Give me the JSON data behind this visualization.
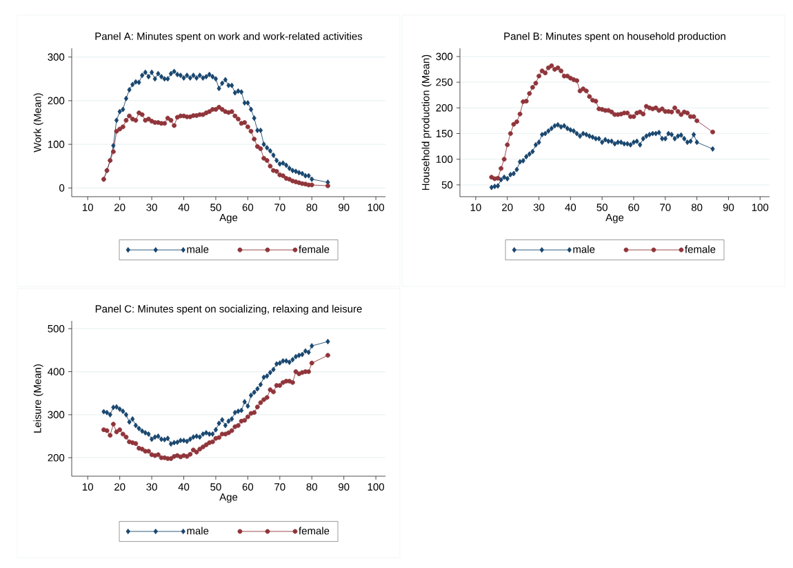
{
  "chart_data": [
    {
      "type": "line",
      "title": "Panel A: Minutes spent on work and work-related activities",
      "xlabel": "Age",
      "ylabel": "Work (Mean)",
      "x": [
        15,
        16,
        17,
        18,
        19,
        20,
        21,
        22,
        23,
        24,
        25,
        26,
        27,
        28,
        29,
        30,
        31,
        32,
        33,
        34,
        35,
        36,
        37,
        38,
        39,
        40,
        41,
        42,
        43,
        44,
        45,
        46,
        47,
        48,
        49,
        50,
        51,
        52,
        53,
        54,
        55,
        56,
        57,
        58,
        59,
        60,
        61,
        62,
        63,
        64,
        65,
        66,
        67,
        68,
        69,
        70,
        71,
        72,
        73,
        74,
        75,
        76,
        77,
        78,
        79,
        80,
        85
      ],
      "series": [
        {
          "name": "male",
          "color": "#1a476f",
          "marker": "diamond",
          "values": [
            20,
            40,
            63,
            97,
            155,
            175,
            180,
            205,
            225,
            237,
            243,
            242,
            258,
            265,
            255,
            265,
            250,
            262,
            255,
            250,
            250,
            262,
            267,
            260,
            258,
            252,
            258,
            252,
            258,
            252,
            258,
            252,
            255,
            260,
            255,
            250,
            228,
            240,
            248,
            235,
            235,
            218,
            222,
            220,
            195,
            195,
            180,
            160,
            132,
            132,
            100,
            92,
            85,
            75,
            63,
            55,
            57,
            52,
            45,
            40,
            38,
            35,
            33,
            28,
            28,
            20,
            13
          ]
        },
        {
          "name": "female",
          "color": "#90353b",
          "marker": "circle",
          "values": [
            20,
            40,
            63,
            83,
            130,
            135,
            140,
            155,
            165,
            158,
            155,
            172,
            168,
            155,
            158,
            153,
            150,
            150,
            148,
            148,
            160,
            155,
            143,
            162,
            165,
            165,
            163,
            163,
            166,
            166,
            168,
            168,
            172,
            175,
            180,
            180,
            185,
            180,
            175,
            173,
            175,
            165,
            158,
            148,
            150,
            140,
            130,
            112,
            95,
            90,
            68,
            63,
            50,
            40,
            38,
            30,
            28,
            22,
            20,
            16,
            14,
            12,
            10,
            9,
            7,
            7,
            5
          ]
        }
      ],
      "xlim": [
        5,
        103
      ],
      "ylim": [
        -20,
        320
      ],
      "xticks": [
        10,
        20,
        30,
        40,
        50,
        60,
        70,
        80,
        90,
        100
      ],
      "yticks": [
        0,
        100,
        200,
        300
      ],
      "grid": "y",
      "legend": "bottom"
    },
    {
      "type": "line",
      "title": "Panel B: Minutes spent on household production",
      "xlabel": "Age",
      "ylabel": "Household production (Mean)",
      "x": [
        15,
        16,
        17,
        18,
        19,
        20,
        21,
        22,
        23,
        24,
        25,
        26,
        27,
        28,
        29,
        30,
        31,
        32,
        33,
        34,
        35,
        36,
        37,
        38,
        39,
        40,
        41,
        42,
        43,
        44,
        45,
        46,
        47,
        48,
        49,
        50,
        51,
        52,
        53,
        54,
        55,
        56,
        57,
        58,
        59,
        60,
        61,
        62,
        63,
        64,
        65,
        66,
        67,
        68,
        69,
        70,
        71,
        72,
        73,
        74,
        75,
        76,
        77,
        78,
        79,
        80,
        85
      ],
      "series": [
        {
          "name": "male",
          "color": "#1a476f",
          "marker": "diamond",
          "values": [
            45,
            47,
            48,
            60,
            65,
            62,
            70,
            72,
            80,
            95,
            97,
            105,
            110,
            115,
            128,
            133,
            148,
            150,
            155,
            160,
            165,
            167,
            163,
            165,
            160,
            157,
            155,
            150,
            145,
            150,
            148,
            145,
            143,
            140,
            140,
            133,
            138,
            135,
            135,
            130,
            133,
            133,
            130,
            130,
            128,
            133,
            135,
            128,
            140,
            145,
            148,
            150,
            150,
            152,
            140,
            140,
            150,
            148,
            140,
            145,
            147,
            140,
            133,
            135,
            148,
            133,
            120
          ]
        },
        {
          "name": "female",
          "color": "#90353b",
          "marker": "circle",
          "values": [
            65,
            62,
            63,
            82,
            100,
            128,
            150,
            168,
            173,
            188,
            212,
            213,
            228,
            240,
            248,
            262,
            272,
            268,
            278,
            282,
            275,
            278,
            272,
            262,
            262,
            258,
            255,
            253,
            233,
            237,
            233,
            222,
            215,
            213,
            198,
            197,
            195,
            195,
            192,
            187,
            187,
            188,
            190,
            190,
            183,
            183,
            190,
            192,
            188,
            203,
            200,
            198,
            200,
            195,
            198,
            193,
            193,
            192,
            200,
            193,
            187,
            192,
            190,
            183,
            183,
            175,
            153
          ]
        }
      ],
      "xlim": [
        5,
        103
      ],
      "ylim": [
        27,
        316
      ],
      "xticks": [
        10,
        20,
        30,
        40,
        50,
        60,
        70,
        80,
        90,
        100
      ],
      "yticks": [
        50,
        100,
        150,
        200,
        250,
        300
      ],
      "grid": "y",
      "legend": "bottom"
    },
    {
      "type": "line",
      "title": "Panel C: Minutes spent on socializing, relaxing and leisure",
      "xlabel": "Age",
      "ylabel": "Leisure (Mean)",
      "x": [
        15,
        16,
        17,
        18,
        19,
        20,
        21,
        22,
        23,
        24,
        25,
        26,
        27,
        28,
        29,
        30,
        31,
        32,
        33,
        34,
        35,
        36,
        37,
        38,
        39,
        40,
        41,
        42,
        43,
        44,
        45,
        46,
        47,
        48,
        49,
        50,
        51,
        52,
        53,
        54,
        55,
        56,
        57,
        58,
        59,
        60,
        61,
        62,
        63,
        64,
        65,
        66,
        67,
        68,
        69,
        70,
        71,
        72,
        73,
        74,
        75,
        76,
        77,
        78,
        79,
        80,
        85
      ],
      "series": [
        {
          "name": "male",
          "color": "#1a476f",
          "marker": "diamond",
          "values": [
            307,
            305,
            300,
            317,
            318,
            313,
            308,
            300,
            283,
            290,
            275,
            268,
            262,
            258,
            255,
            243,
            248,
            250,
            243,
            242,
            245,
            232,
            235,
            236,
            240,
            240,
            238,
            243,
            248,
            250,
            248,
            255,
            258,
            255,
            255,
            265,
            280,
            288,
            275,
            285,
            290,
            305,
            308,
            310,
            330,
            320,
            345,
            352,
            360,
            370,
            387,
            390,
            398,
            405,
            418,
            420,
            425,
            425,
            422,
            428,
            435,
            438,
            440,
            448,
            445,
            460,
            470
          ]
        },
        {
          "name": "female",
          "color": "#90353b",
          "marker": "circle",
          "values": [
            265,
            263,
            252,
            278,
            260,
            265,
            255,
            248,
            237,
            235,
            233,
            222,
            220,
            215,
            215,
            207,
            205,
            207,
            200,
            200,
            198,
            198,
            203,
            205,
            202,
            205,
            203,
            208,
            218,
            213,
            220,
            225,
            230,
            235,
            237,
            245,
            247,
            255,
            255,
            258,
            263,
            272,
            275,
            285,
            287,
            295,
            303,
            305,
            318,
            328,
            335,
            340,
            358,
            353,
            368,
            368,
            375,
            378,
            378,
            375,
            400,
            395,
            398,
            400,
            400,
            420,
            438
          ]
        }
      ],
      "xlim": [
        5,
        103
      ],
      "ylim": [
        157,
        518
      ],
      "xticks": [
        10,
        20,
        30,
        40,
        50,
        60,
        70,
        80,
        90,
        100
      ],
      "yticks": [
        200,
        300,
        400,
        500
      ],
      "grid": "y",
      "legend": "bottom"
    }
  ]
}
